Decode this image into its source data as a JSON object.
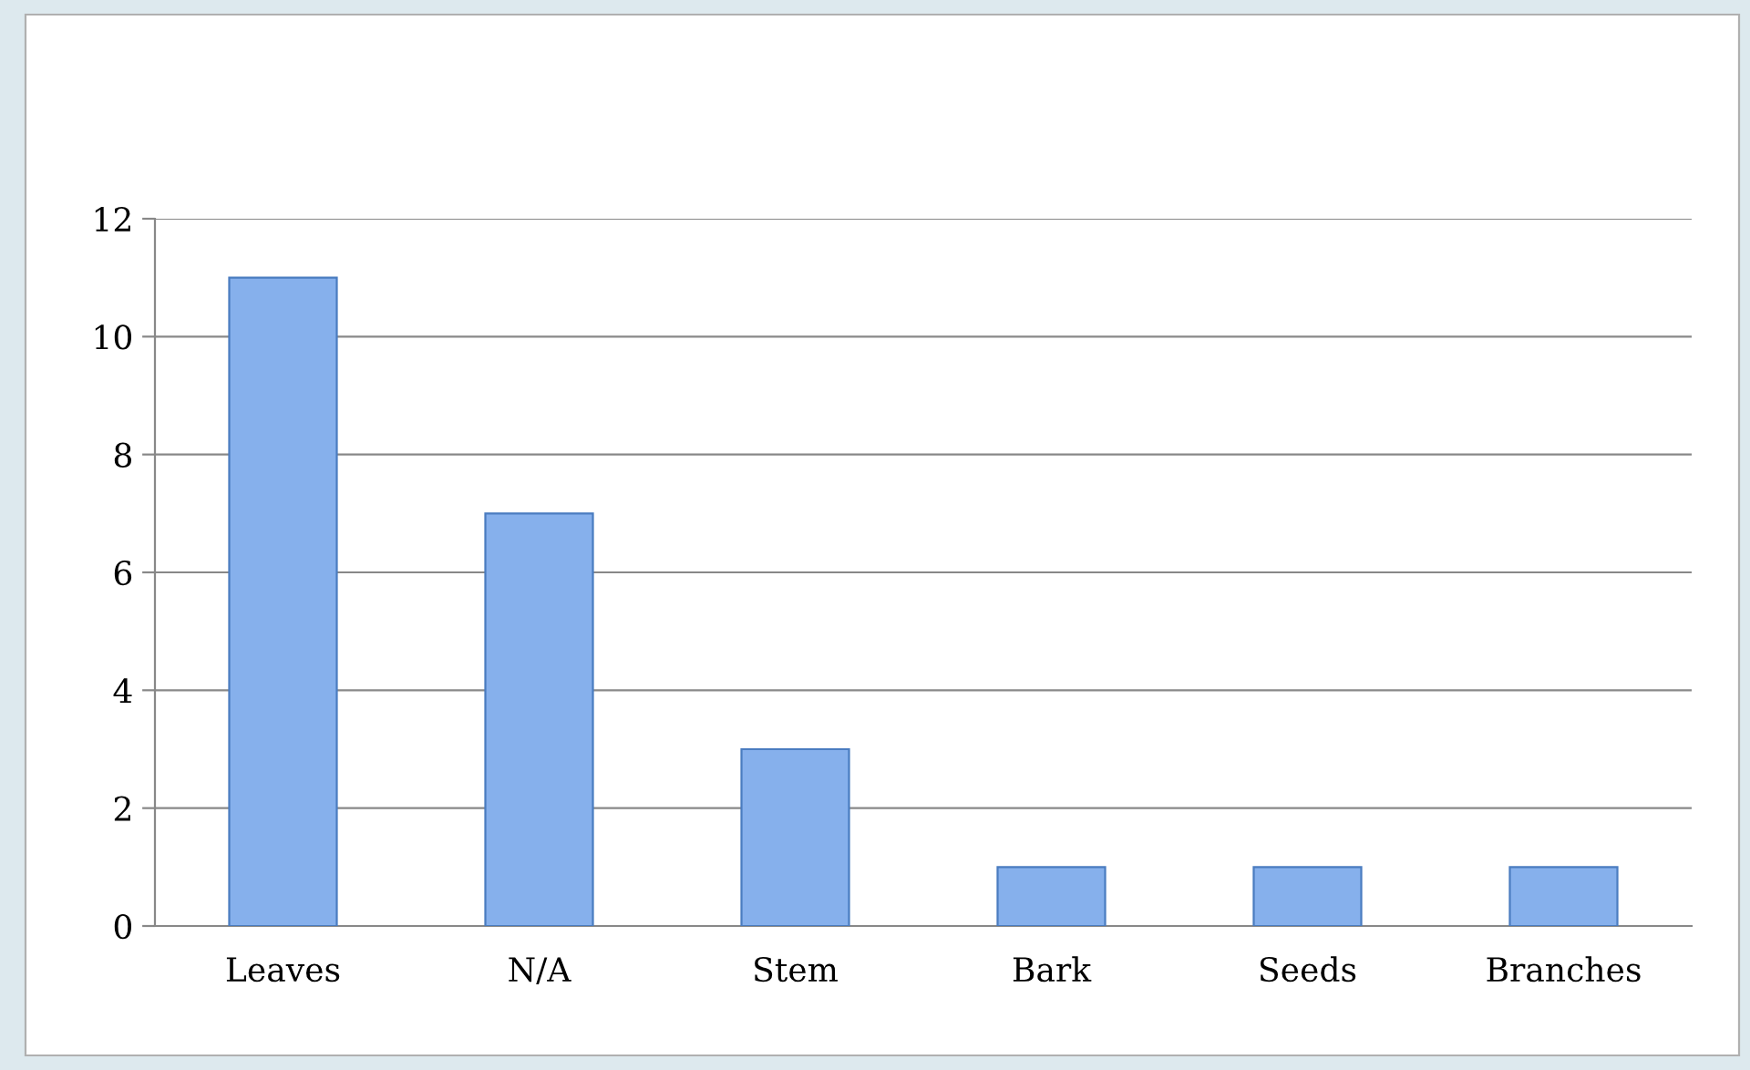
{
  "chart_data": {
    "type": "bar",
    "categories": [
      "Leaves",
      "N/A",
      "Stem",
      "Bark",
      "Seeds",
      "Branches"
    ],
    "values": [
      11,
      7,
      3,
      1,
      1,
      1
    ],
    "color": "#86b0ec",
    "ylim": [
      0,
      12
    ],
    "yticks": [
      0,
      2,
      4,
      6,
      8,
      10,
      12
    ],
    "grid": "y",
    "legend": false
  }
}
